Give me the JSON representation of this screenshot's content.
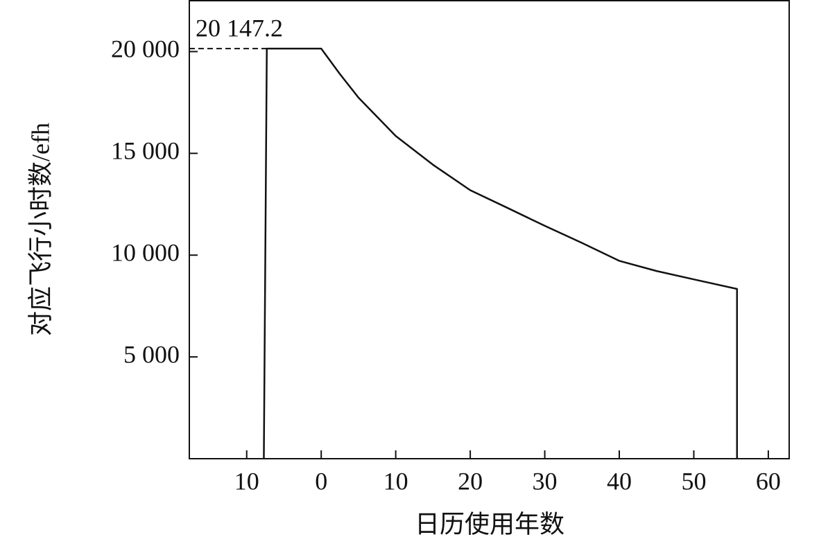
{
  "chart_data": {
    "type": "line",
    "x_label": "日历使用年数",
    "y_label": "对应飞行小时数/efh",
    "x": [
      -7.7,
      -7.3,
      0,
      2.5,
      5,
      10,
      15,
      20,
      25,
      30,
      35,
      40,
      45,
      50,
      55.8,
      55.8
    ],
    "series": [
      {
        "color": "#111111",
        "values": [
          0,
          20147.2,
          20147.2,
          18900,
          17740,
          15855,
          14440,
          13190,
          12320,
          11440,
          10600,
          9720,
          9220,
          8810,
          8340,
          0
        ]
      }
    ],
    "xlim": [
      -17.7,
      62.8
    ],
    "xticks": [
      {
        "value": -10,
        "label": "10"
      },
      0,
      10,
      20,
      30,
      40,
      50,
      60
    ],
    "ylim": [
      0,
      22500
    ],
    "yticks": [
      {
        "value": 5000,
        "label": "5 000"
      },
      {
        "value": 10000,
        "label": "10 000"
      },
      {
        "value": 15000,
        "label": "15 000"
      },
      {
        "value": 20000,
        "label": "20 000"
      }
    ],
    "annotations": [
      {
        "text": "20 147.2",
        "value": 20147.2
      }
    ],
    "grid": false
  }
}
